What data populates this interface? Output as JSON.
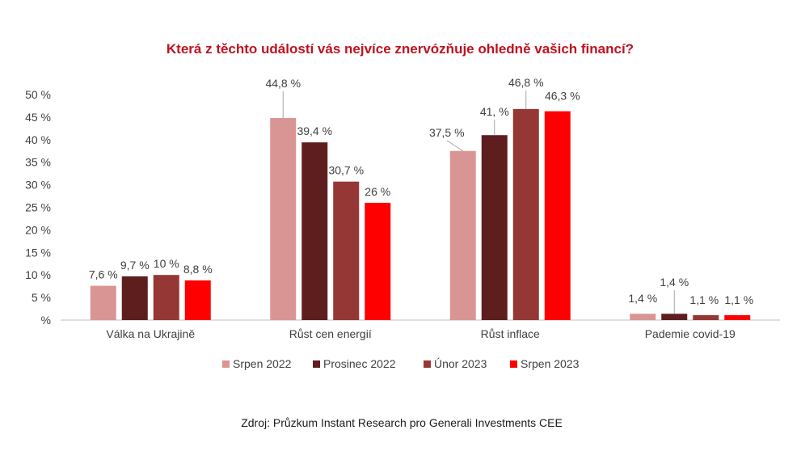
{
  "chart_data": {
    "type": "bar",
    "title": "Která z těchto událostí vás nejvíce znervózňuje ohledně vašich financí?",
    "categories": [
      "Válka na Ukrajině",
      "Růst cen energií",
      "Růst inflace",
      "Pademie covid-19"
    ],
    "series": [
      {
        "name": "Srpen 2022",
        "color": "#d99594",
        "values": [
          7.6,
          44.8,
          37.5,
          1.4
        ],
        "labels": [
          "7,6 %",
          "44,8 %",
          "37,5 %",
          "1,4 %"
        ]
      },
      {
        "name": "Prosinec 2022",
        "color": "#5e1e1e",
        "values": [
          9.7,
          39.4,
          41.0,
          1.4
        ],
        "labels": [
          "9,7 %",
          "39,4 %",
          "41, %",
          "1,4 %"
        ]
      },
      {
        "name": "Únor 2023",
        "color": "#953735",
        "values": [
          10,
          30.7,
          46.8,
          1.1
        ],
        "labels": [
          "10 %",
          "30,7 %",
          "46,8 %",
          "1,1 %"
        ]
      },
      {
        "name": "Srpen 2023",
        "color": "#ff0000",
        "values": [
          8.8,
          26,
          46.3,
          1.1
        ],
        "labels": [
          "8,8 %",
          "26 %",
          "46,3 %",
          "1,1 %"
        ]
      }
    ],
    "y_ticks": [
      "%",
      "5 %",
      "10 %",
      "15 %",
      "20 %",
      "25 %",
      "30 %",
      "35 %",
      "40 %",
      "45 %",
      "50 %"
    ],
    "ylim": [
      0,
      50
    ],
    "grid": false,
    "legend_position": "bottom"
  },
  "source": "Zdroj: Průzkum Instant Research pro Generali Investments CEE"
}
